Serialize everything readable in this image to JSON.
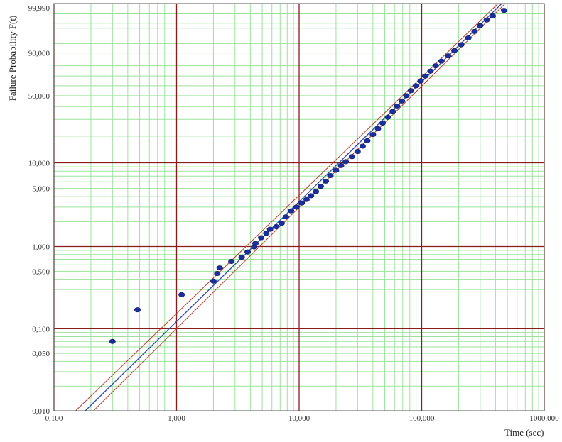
{
  "chart_data": {
    "type": "scatter",
    "title": "",
    "xlabel": "Time (sec)",
    "ylabel": "Failure Probability F(t)",
    "x_scale": "log",
    "y_scale": "weibull",
    "xlim": [
      0.1,
      1000
    ],
    "ylim": [
      0.01,
      99.99
    ],
    "grid": true,
    "legend": "none",
    "x_ticks": [
      "0,100",
      "1,000",
      "10,000",
      "100,000",
      "1000,000"
    ],
    "x_tick_values": [
      0.1,
      1,
      10,
      100,
      1000
    ],
    "y_ticks": [
      "0,010",
      "0,050",
      "0,100",
      "0,500",
      "1,000",
      "5,000",
      "10,000",
      "50,000",
      "90,000",
      "99,990"
    ],
    "y_tick_values": [
      0.01,
      0.05,
      0.1,
      0.5,
      1,
      5,
      10,
      50,
      90,
      99.99
    ],
    "colors": {
      "minor_grid": "#9be39b",
      "major_grid": "#8b1a1a",
      "fit_line": "#2b46b5",
      "confidence_bounds": "#c0392b",
      "points": "#1a2f9e"
    },
    "fit_line": {
      "x": [
        0.18,
        450
      ],
      "y": [
        0.01,
        99.99
      ]
    },
    "confidence_bounds": [
      {
        "x": [
          0.15,
          420
        ],
        "y": [
          0.01,
          99.99
        ]
      },
      {
        "x": [
          0.21,
          480
        ],
        "y": [
          0.01,
          99.99
        ]
      }
    ],
    "series": [
      {
        "points": [
          [
            0.3,
            0.07
          ],
          [
            0.48,
            0.17
          ],
          [
            1.1,
            0.26
          ],
          [
            2.0,
            0.38
          ],
          [
            2.15,
            0.47
          ],
          [
            2.25,
            0.55
          ],
          [
            2.8,
            0.66
          ],
          [
            3.4,
            0.74
          ],
          [
            3.8,
            0.86
          ],
          [
            4.3,
            0.99
          ],
          [
            4.4,
            1.09
          ],
          [
            4.9,
            1.28
          ],
          [
            5.4,
            1.45
          ],
          [
            5.8,
            1.62
          ],
          [
            6.5,
            1.74
          ],
          [
            7.2,
            1.91
          ],
          [
            7.8,
            2.28
          ],
          [
            8.6,
            2.7
          ],
          [
            9.5,
            3.0
          ],
          [
            10.5,
            3.35
          ],
          [
            11.5,
            3.7
          ],
          [
            12.5,
            4.1
          ],
          [
            13.7,
            4.6
          ],
          [
            15,
            5.3
          ],
          [
            16.5,
            6.1
          ],
          [
            18,
            7.1
          ],
          [
            20,
            8.2
          ],
          [
            22,
            9.3
          ],
          [
            24,
            10.3
          ],
          [
            27,
            11.8
          ],
          [
            30,
            13.5
          ],
          [
            33,
            15.5
          ],
          [
            36,
            17.8
          ],
          [
            40,
            20.8
          ],
          [
            44,
            24
          ],
          [
            48,
            27.5
          ],
          [
            53,
            31.5
          ],
          [
            58,
            36
          ],
          [
            63,
            40.5
          ],
          [
            69,
            45
          ],
          [
            75,
            50
          ],
          [
            82,
            55
          ],
          [
            90,
            60
          ],
          [
            98,
            65
          ],
          [
            107,
            70
          ],
          [
            118,
            75
          ],
          [
            130,
            80
          ],
          [
            145,
            84
          ],
          [
            165,
            88
          ],
          [
            185,
            91.5
          ],
          [
            210,
            94.5
          ],
          [
            240,
            97
          ],
          [
            270,
            98.5
          ],
          [
            300,
            99.3
          ],
          [
            340,
            99.7
          ],
          [
            380,
            99.85
          ],
          [
            470,
            99.95
          ]
        ]
      }
    ]
  }
}
